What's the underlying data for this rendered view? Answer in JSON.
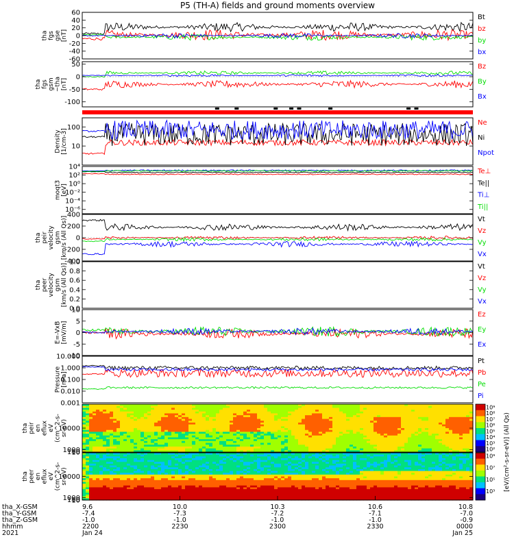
{
  "title": "P5 (TH-A) fields and ground moments overview",
  "chart_data": [
    {
      "id": "fgs_gse",
      "type": "line",
      "ylabel": [
        "tha",
        "fgs",
        "gse",
        "[nT]"
      ],
      "ylim": [
        -60,
        60
      ],
      "yticks": [
        {
          "v": 60,
          "label": "60"
        },
        {
          "v": 40,
          "label": "40"
        },
        {
          "v": 20,
          "label": "20"
        },
        {
          "v": 0,
          "label": "0"
        },
        {
          "v": -20,
          "label": "-20"
        },
        {
          "v": -40,
          "label": "-40"
        },
        {
          "v": -60,
          "label": "-60"
        }
      ],
      "series": [
        {
          "name": "Bt",
          "color": "#000000",
          "base": 22,
          "amp": 12,
          "pre": 5
        },
        {
          "name": "bz",
          "color": "#ff0000",
          "base": 2,
          "amp": 14,
          "pre": -8
        },
        {
          "name": "by",
          "color": "#00dd00",
          "base": -4,
          "amp": 8,
          "pre": 2
        },
        {
          "name": "bx",
          "color": "#0000ff",
          "base": 0,
          "amp": 6,
          "pre": 0
        }
      ]
    },
    {
      "id": "fgs_gsm",
      "type": "line",
      "ylabel": [
        "tha",
        "fgs",
        "gsm",
        "~tha",
        "[nT]"
      ],
      "ylim": [
        -120,
        60
      ],
      "yticks": [
        {
          "v": 50,
          "label": "50"
        },
        {
          "v": 0,
          "label": "0"
        },
        {
          "v": -50,
          "label": "-50"
        },
        {
          "v": -100,
          "label": "-100"
        }
      ],
      "series": [
        {
          "name": "Bz",
          "color": "#ff0000",
          "base": -30,
          "amp": 15,
          "pre": -50
        },
        {
          "name": "By",
          "color": "#00dd00",
          "base": 15,
          "amp": 8,
          "pre": 0
        },
        {
          "name": "Bx",
          "color": "#0000ff",
          "base": 5,
          "amp": 5,
          "pre": 5
        }
      ]
    },
    {
      "id": "density",
      "type": "line",
      "log": true,
      "ylabel": [
        "Density",
        "[1/cm-3]"
      ],
      "ylim": [
        1,
        300
      ],
      "yticks": [
        {
          "v": 100,
          "label": "100"
        },
        {
          "v": 10,
          "label": "10"
        }
      ],
      "series": [
        {
          "name": "Ne",
          "color": "#ff0000",
          "base": 15,
          "amp": 0.15,
          "pre": 4
        },
        {
          "name": "Ni",
          "color": "#000000",
          "base": 40,
          "amp": 0.6,
          "pre": 30
        },
        {
          "name": "Npot",
          "color": "#0000ff",
          "base": 70,
          "amp": 0.5,
          "pre": 60
        }
      ]
    },
    {
      "id": "mom_temp",
      "type": "line",
      "log": true,
      "ylabel": [
        "moqt3",
        "[eV]"
      ],
      "ylim": [
        1e-07,
        10000
      ],
      "yticks": [
        {
          "v": 10000,
          "label": "10⁴"
        },
        {
          "v": 100,
          "label": "10²"
        },
        {
          "v": 1,
          "label": "10⁰"
        },
        {
          "v": 0.01,
          "label": "10⁻²"
        },
        {
          "v": 0.0001,
          "label": "10⁻⁴"
        },
        {
          "v": 1e-06,
          "label": "10⁻⁶"
        }
      ],
      "series": [
        {
          "name": "Te⊥",
          "color": "#ff0000",
          "base": 150,
          "amp": 0.1,
          "pre": 200
        },
        {
          "name": "Te||",
          "color": "#000000",
          "base": 400,
          "amp": 0.1,
          "pre": 600
        },
        {
          "name": "Ti⊥",
          "color": "#0000ff",
          "base": 1200,
          "amp": 0.15,
          "pre": 900
        },
        {
          "name": "Ti||",
          "color": "#00dd00",
          "base": 900,
          "amp": 0.15,
          "pre": 700
        }
      ]
    },
    {
      "id": "peir_velocity",
      "type": "line",
      "ylabel": [
        "tha",
        "peir",
        "velocity",
        "gsm",
        "[km/s (All Qs)]"
      ],
      "ylim": [
        -400,
        400
      ],
      "yticks": [
        {
          "v": 400,
          "label": "400"
        },
        {
          "v": 200,
          "label": "200"
        },
        {
          "v": 0,
          "label": "0"
        },
        {
          "v": -200,
          "label": "-200"
        },
        {
          "v": -400,
          "label": "-400"
        }
      ],
      "series": [
        {
          "name": "Vt",
          "color": "#000000",
          "base": 180,
          "amp": 60,
          "pre": 300
        },
        {
          "name": "Vz",
          "color": "#ff0000",
          "base": 0,
          "amp": 30,
          "pre": -20
        },
        {
          "name": "Vy",
          "color": "#00dd00",
          "base": -30,
          "amp": 30,
          "pre": -60
        },
        {
          "name": "Vx",
          "color": "#0000ff",
          "base": -110,
          "amp": 50,
          "pre": -280
        }
      ]
    },
    {
      "id": "peer_velocity",
      "type": "line",
      "empty": true,
      "ylabel": [
        "tha",
        "peer",
        "velocity",
        "gsm",
        "[km/s (All Qs)]"
      ],
      "ylim": [
        0,
        1
      ],
      "yticks": [
        {
          "v": 1.0,
          "label": "1.0"
        },
        {
          "v": 0.8,
          "label": "0.8"
        },
        {
          "v": 0.6,
          "label": "0.6"
        },
        {
          "v": 0.4,
          "label": "0.4"
        },
        {
          "v": 0.2,
          "label": "0.2"
        },
        {
          "v": 0.0,
          "label": "0.0"
        }
      ],
      "series": [
        {
          "name": "Vt",
          "color": "#000000"
        },
        {
          "name": "Vz",
          "color": "#ff0000"
        },
        {
          "name": "Vy",
          "color": "#00dd00"
        },
        {
          "name": "Vx",
          "color": "#0000ff"
        }
      ]
    },
    {
      "id": "efield",
      "type": "line",
      "ylabel": [
        "E=-VxB",
        "[mV/m]"
      ],
      "ylim": [
        -10,
        10
      ],
      "yticks": [
        {
          "v": 10,
          "label": "10"
        },
        {
          "v": 5,
          "label": "5"
        },
        {
          "v": 0,
          "label": "0"
        },
        {
          "v": -5,
          "label": "-5"
        },
        {
          "v": -10,
          "label": "-10"
        }
      ],
      "series": [
        {
          "name": "Ez",
          "color": "#ff0000",
          "base": -0.5,
          "amp": 2.2,
          "pre": 0
        },
        {
          "name": "Ey",
          "color": "#00dd00",
          "base": 0.5,
          "amp": 2.2,
          "pre": 1
        },
        {
          "name": "Ex",
          "color": "#0000ff",
          "base": 0.5,
          "amp": 1.5,
          "pre": 0
        }
      ]
    },
    {
      "id": "pressure",
      "type": "line",
      "log": true,
      "ylabel": [
        "Pressure",
        "[nPa]"
      ],
      "ylim": [
        0.001,
        10
      ],
      "yticks": [
        {
          "v": 10,
          "label": "10.000"
        },
        {
          "v": 1,
          "label": "1.000"
        },
        {
          "v": 0.1,
          "label": "0.100"
        },
        {
          "v": 0.01,
          "label": "0.010"
        },
        {
          "v": 0.001,
          "label": "0.001"
        }
      ],
      "series": [
        {
          "name": "Pt",
          "color": "#000000",
          "base": 1.0,
          "amp": 0.15,
          "pre": 1.5
        },
        {
          "name": "Pb",
          "color": "#ff0000",
          "base": 0.35,
          "amp": 0.35,
          "pre": 0.3
        },
        {
          "name": "Pe",
          "color": "#00dd00",
          "base": 0.02,
          "amp": 0.08,
          "pre": 0.015
        },
        {
          "name": "Pi",
          "color": "#0000ff",
          "base": 0.7,
          "amp": 0.12,
          "pre": 1.2
        }
      ]
    },
    {
      "id": "peir_en_eflux",
      "type": "heatmap",
      "ylabel": [
        "tha",
        "peir",
        "en",
        "eflux",
        "eV",
        "(cm^2-s-",
        "sr-eV)"
      ],
      "ylim": [
        5,
        20000
      ],
      "yticks": [
        {
          "v": 10000,
          "label": "10000"
        },
        {
          "v": 1000,
          "label": "1000"
        },
        {
          "v": 100,
          "label": "100"
        },
        {
          "v": 10,
          "label": "10"
        }
      ]
    },
    {
      "id": "peer_en_eflux",
      "type": "heatmap",
      "ylabel": [
        "tha",
        "peer",
        "en",
        "eflux",
        "eV",
        "(cm^2-s-",
        "sr-eV)"
      ],
      "ylim": [
        5,
        20000
      ],
      "yticks": [
        {
          "v": 10000,
          "label": "10000"
        },
        {
          "v": 1000,
          "label": "1000"
        },
        {
          "v": 100,
          "label": "100"
        },
        {
          "v": 10,
          "label": "10"
        }
      ]
    }
  ],
  "colorbar": {
    "label": "[eV/(cm²-s-sr-eV)] (All Qs)",
    "ticks": [
      "10⁹",
      "10⁸",
      "10⁷",
      "10⁶",
      "10⁵",
      "10⁴",
      "10³",
      "10²"
    ]
  },
  "x_axis": {
    "rows": [
      {
        "name": "tha_X-GSM",
        "values": [
          "9.6",
          "10.0",
          "10.3",
          "10.6",
          "10.8"
        ]
      },
      {
        "name": "tha_Y-GSM",
        "values": [
          "-7.4",
          "-7.3",
          "-7.2",
          "-7.1",
          "-7.0"
        ]
      },
      {
        "name": "tha_Z-GSM",
        "values": [
          "-1.0",
          "-1.0",
          "-1.0",
          "-1.0",
          "-0.9"
        ]
      },
      {
        "name": "hhmm",
        "values": [
          "2200",
          "2230",
          "2300",
          "2330",
          "0000"
        ]
      },
      {
        "name": "2021",
        "values": [
          "Jan 24",
          "",
          "",
          "",
          "Jan 25"
        ]
      }
    ]
  },
  "colors": {
    "frame": "#000000",
    "flag_bar": "#ff0000"
  }
}
